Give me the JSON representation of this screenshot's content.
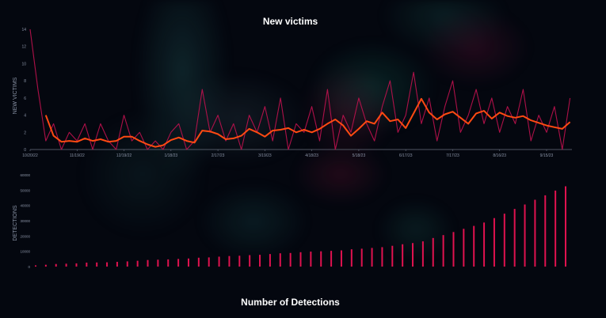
{
  "chart_data": [
    {
      "type": "line",
      "title": "New victims",
      "ylabel": "NEW VICTIMS",
      "xlabel": "",
      "ylim": [
        0,
        14
      ],
      "yticks": [
        "0",
        "2",
        "4",
        "6",
        "8",
        "10",
        "12",
        "14"
      ],
      "xticks": [
        "10/20/22",
        "11/19/22",
        "12/19/22",
        "1/18/23",
        "2/17/23",
        "3/19/23",
        "4/18/23",
        "5/18/23",
        "6/17/23",
        "7/17/23",
        "8/16/23",
        "9/15/23"
      ],
      "x": [
        "10/20/22",
        "10/25/22",
        "10/30/22",
        "11/4/22",
        "11/9/22",
        "11/14/22",
        "11/19/22",
        "11/24/22",
        "11/29/22",
        "12/4/22",
        "12/9/22",
        "12/14/22",
        "12/19/22",
        "12/24/22",
        "12/29/22",
        "1/3/23",
        "1/8/23",
        "1/13/23",
        "1/18/23",
        "1/23/23",
        "1/28/23",
        "2/2/23",
        "2/7/23",
        "2/12/23",
        "2/17/23",
        "2/22/23",
        "2/27/23",
        "3/4/23",
        "3/9/23",
        "3/14/23",
        "3/19/23",
        "3/24/23",
        "3/29/23",
        "4/3/23",
        "4/8/23",
        "4/13/23",
        "4/18/23",
        "4/23/23",
        "4/28/23",
        "5/3/23",
        "5/8/23",
        "5/13/23",
        "5/18/23",
        "5/23/23",
        "5/28/23",
        "6/2/23",
        "6/7/23",
        "6/12/23",
        "6/17/23",
        "6/22/23",
        "6/27/23",
        "7/2/23",
        "7/7/23",
        "7/12/23",
        "7/17/23",
        "7/22/23",
        "7/27/23",
        "8/1/23",
        "8/6/23",
        "8/11/23",
        "8/16/23",
        "8/21/23",
        "8/26/23",
        "8/31/23",
        "9/5/23",
        "9/10/23",
        "9/15/23",
        "9/20/23",
        "9/25/23",
        "9/30/23"
      ],
      "series": [
        {
          "color": "#c0124f",
          "values": [
            14,
            7,
            1,
            3,
            0,
            2,
            1,
            3,
            0,
            3,
            1,
            0,
            4,
            1,
            2,
            0,
            1,
            0,
            2,
            3,
            0,
            1,
            7,
            2,
            4,
            1,
            3,
            0,
            4,
            2,
            5,
            1,
            6,
            0,
            3,
            2,
            5,
            1,
            7,
            0,
            4,
            2,
            6,
            3,
            1,
            5,
            8,
            2,
            4,
            9,
            3,
            6,
            1,
            5,
            8,
            2,
            4,
            7,
            3,
            6,
            2,
            5,
            3,
            7,
            1,
            4,
            2,
            5,
            0,
            6
          ]
        },
        {
          "color": "#ff4a12",
          "values": [
            null,
            null,
            4.0,
            1.6,
            0.9,
            1.0,
            0.9,
            1.3,
            1.0,
            1.2,
            0.9,
            1.0,
            1.5,
            1.5,
            1.0,
            0.6,
            0.3,
            0.5,
            1.1,
            1.4,
            1.0,
            0.8,
            2.2,
            2.1,
            1.8,
            1.2,
            1.3,
            1.6,
            2.4,
            2.0,
            1.5,
            2.2,
            2.3,
            2.5,
            2.0,
            2.3,
            2.0,
            2.4,
            3.0,
            3.5,
            2.8,
            1.6,
            2.4,
            3.3,
            3.0,
            4.3,
            3.3,
            3.5,
            2.5,
            4.2,
            5.9,
            4.3,
            3.5,
            4.1,
            4.4,
            3.7,
            3.0,
            4.2,
            4.5,
            3.6,
            4.3,
            3.9,
            3.7,
            3.9,
            3.4,
            3.1,
            2.8,
            2.6,
            2.4,
            3.2
          ]
        }
      ],
      "grid": false
    },
    {
      "type": "bar",
      "title": "Number of Detections",
      "ylabel": "DETECTIONS",
      "xlabel": "",
      "ylim": [
        0,
        60000
      ],
      "yticks": [
        "0",
        "10000",
        "20000",
        "30000",
        "40000",
        "50000",
        "60000"
      ],
      "color": "#e0124f",
      "values": [
        800,
        1200,
        1700,
        1900,
        2100,
        2600,
        2700,
        2800,
        3100,
        3400,
        3800,
        4300,
        4500,
        4700,
        5000,
        5300,
        5800,
        6000,
        6500,
        6900,
        7100,
        7500,
        7700,
        8200,
        8700,
        8900,
        9400,
        9800,
        10000,
        10300,
        10600,
        11300,
        11700,
        12200,
        12700,
        13600,
        14600,
        15400,
        16500,
        18700,
        20600,
        22600,
        24700,
        26600,
        28800,
        31700,
        34600,
        37700,
        40600,
        43700,
        46600,
        49700,
        52500
      ],
      "grid": false
    }
  ]
}
